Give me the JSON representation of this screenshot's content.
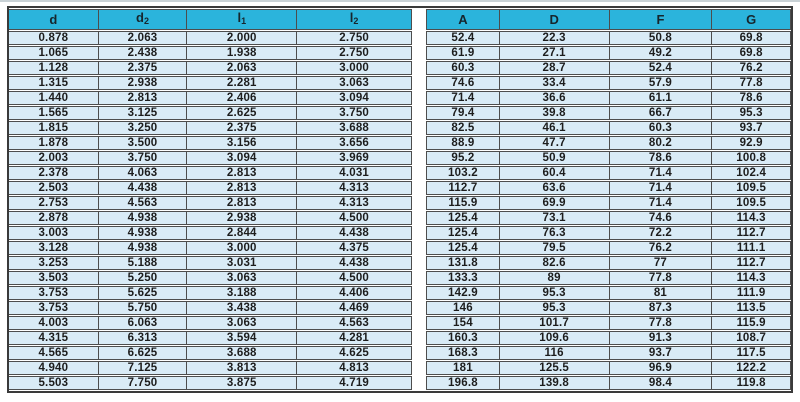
{
  "colors": {
    "header_bg": "#2bb4dc",
    "header_text": "#16262d",
    "row_bg": "#d9ebf6",
    "grid_line": "#4d4d4d",
    "cell_text": "#1d1d1d",
    "outer_border": "#3a3a3a"
  },
  "table": {
    "headers": [
      {
        "base": "d",
        "sub": ""
      },
      {
        "base": "d",
        "sub": "2"
      },
      {
        "base": "l",
        "sub": "1"
      },
      {
        "base": "l",
        "sub": "2"
      },
      {
        "base": "A",
        "sub": ""
      },
      {
        "base": "D",
        "sub": ""
      },
      {
        "base": "F",
        "sub": ""
      },
      {
        "base": "G",
        "sub": ""
      }
    ],
    "rows": [
      [
        "0.878",
        "2.063",
        "2.000",
        "2.750",
        "52.4",
        "22.3",
        "50.8",
        "69.8"
      ],
      [
        "1.065",
        "2.438",
        "1.938",
        "2.750",
        "61.9",
        "27.1",
        "49.2",
        "69.8"
      ],
      [
        "1.128",
        "2.375",
        "2.063",
        "3.000",
        "60.3",
        "28.7",
        "52.4",
        "76.2"
      ],
      [
        "1.315",
        "2.938",
        "2.281",
        "3.063",
        "74.6",
        "33.4",
        "57.9",
        "77.8"
      ],
      [
        "1.440",
        "2.813",
        "2.406",
        "3.094",
        "71.4",
        "36.6",
        "61.1",
        "78.6"
      ],
      [
        "1.565",
        "3.125",
        "2.625",
        "3.750",
        "79.4",
        "39.8",
        "66.7",
        "95.3"
      ],
      [
        "1.815",
        "3.250",
        "2.375",
        "3.688",
        "82.5",
        "46.1",
        "60.3",
        "93.7"
      ],
      [
        "1.878",
        "3.500",
        "3.156",
        "3.656",
        "88.9",
        "47.7",
        "80.2",
        "92.9"
      ],
      [
        "2.003",
        "3.750",
        "3.094",
        "3.969",
        "95.2",
        "50.9",
        "78.6",
        "100.8"
      ],
      [
        "2.378",
        "4.063",
        "2.813",
        "4.031",
        "103.2",
        "60.4",
        "71.4",
        "102.4"
      ],
      [
        "2.503",
        "4.438",
        "2.813",
        "4.313",
        "112.7",
        "63.6",
        "71.4",
        "109.5"
      ],
      [
        "2.753",
        "4.563",
        "2.813",
        "4.313",
        "115.9",
        "69.9",
        "71.4",
        "109.5"
      ],
      [
        "2.878",
        "4.938",
        "2.938",
        "4.500",
        "125.4",
        "73.1",
        "74.6",
        "114.3"
      ],
      [
        "3.003",
        "4.938",
        "2.844",
        "4.438",
        "125.4",
        "76.3",
        "72.2",
        "112.7"
      ],
      [
        "3.128",
        "4.938",
        "3.000",
        "4.375",
        "125.4",
        "79.5",
        "76.2",
        "111.1"
      ],
      [
        "3.253",
        "5.188",
        "3.031",
        "4.438",
        "131.8",
        "82.6",
        "77",
        "112.7"
      ],
      [
        "3.503",
        "5.250",
        "3.063",
        "4.500",
        "133.3",
        "89",
        "77.8",
        "114.3"
      ],
      [
        "3.753",
        "5.625",
        "3.188",
        "4.406",
        "142.9",
        "95.3",
        "81",
        "111.9"
      ],
      [
        "3.753",
        "5.750",
        "3.438",
        "4.469",
        "146",
        "95.3",
        "87.3",
        "113.5"
      ],
      [
        "4.003",
        "6.063",
        "3.063",
        "4.563",
        "154",
        "101.7",
        "77.8",
        "115.9"
      ],
      [
        "4.315",
        "6.313",
        "3.594",
        "4.281",
        "160.3",
        "109.6",
        "91.3",
        "108.7"
      ],
      [
        "4.565",
        "6.625",
        "3.688",
        "4.625",
        "168.3",
        "116",
        "93.7",
        "117.5"
      ],
      [
        "4.940",
        "7.125",
        "3.813",
        "4.813",
        "181",
        "125.5",
        "96.9",
        "122.2"
      ],
      [
        "5.503",
        "7.750",
        "3.875",
        "4.719",
        "196.8",
        "139.8",
        "98.4",
        "119.8"
      ]
    ]
  }
}
